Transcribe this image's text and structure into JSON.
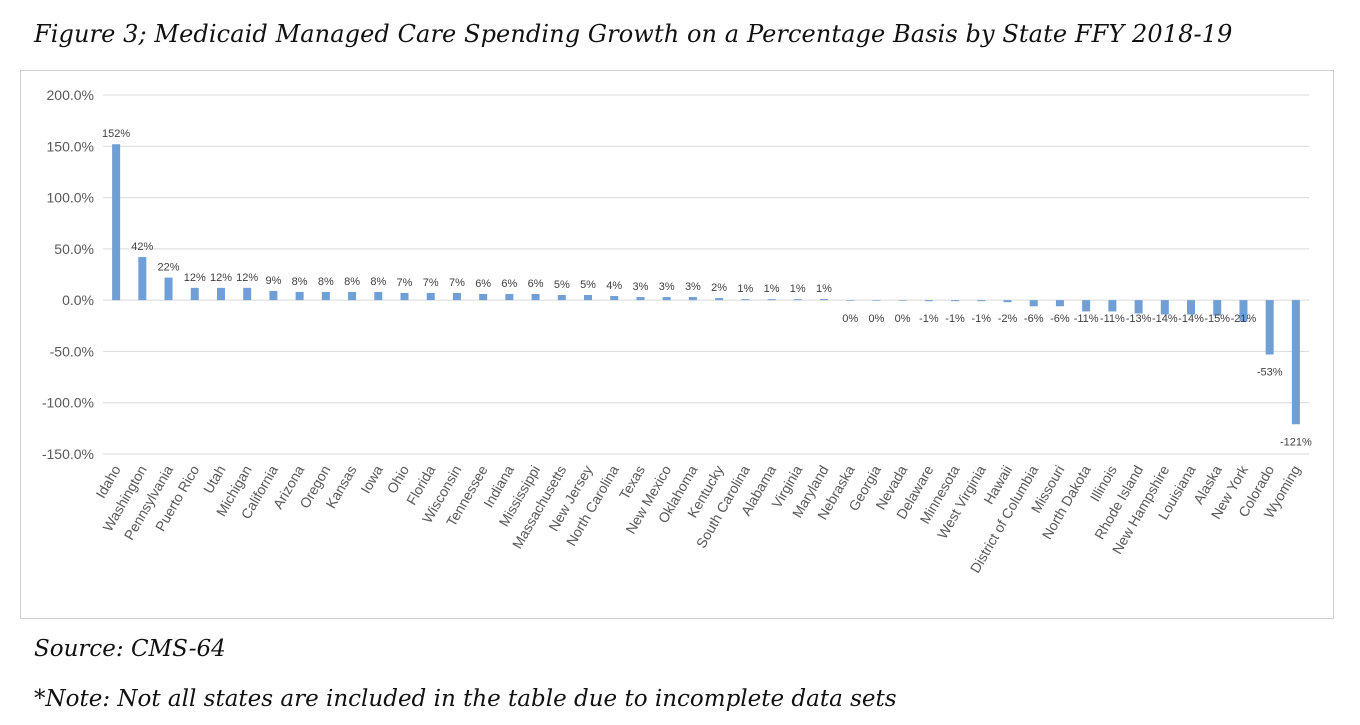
{
  "figure": {
    "title": "Figure 3; Medicaid Managed Care Spending Growth on a Percentage Basis by State FFY 2018-19",
    "source": "Source: CMS-64",
    "note": "*Note: Not all states are included in the table due to incomplete data sets"
  },
  "colors": {
    "bar": "#6f9fd5",
    "gridline": "#d9d9d9",
    "axis_text": "#595959"
  },
  "chart_data": {
    "type": "bar",
    "title": "",
    "xlabel": "",
    "ylabel": "",
    "ylim": [
      -150,
      200
    ],
    "yticks": [
      200,
      150,
      100,
      50,
      0,
      -50,
      -100,
      -150
    ],
    "ytick_labels": [
      "200.0%",
      "150.0%",
      "100.0%",
      "50.0%",
      "0.0%",
      "-50.0%",
      "-100.0%",
      "-150.0%"
    ],
    "grid": true,
    "legend": "none",
    "categories": [
      "Idaho",
      "Washington",
      "Pennsylvania",
      "Puerto Rico",
      "Utah",
      "Michigan",
      "California",
      "Arizona",
      "Oregon",
      "Kansas",
      "Iowa",
      "Ohio",
      "Florida",
      "Wisconsin",
      "Tennessee",
      "Indiana",
      "Mississippi",
      "Massachusetts",
      "New Jersey",
      "North Carolina",
      "Texas",
      "New Mexico",
      "Oklahoma",
      "Kentucky",
      "South Carolina",
      "Alabama",
      "Virginia",
      "Maryland",
      "Nebraska",
      "Georgia",
      "Nevada",
      "Delaware",
      "Minnesota",
      "West Virginia",
      "Hawaii",
      "District of Columbia",
      "Missouri",
      "North Dakota",
      "Illinois",
      "Rhode Island",
      "New Hampshire",
      "Louisiana",
      "Alaska",
      "New York",
      "Colorado",
      "Wyoming"
    ],
    "values": [
      152,
      42,
      22,
      12,
      12,
      12,
      9,
      8,
      8,
      8,
      8,
      7,
      7,
      7,
      6,
      6,
      6,
      5,
      5,
      4,
      3,
      3,
      3,
      2,
      1,
      1,
      1,
      1,
      0,
      0,
      0,
      -1,
      -1,
      -1,
      -2,
      -6,
      -6,
      -11,
      -11,
      -13,
      -14,
      -14,
      -15,
      -21,
      -53,
      -121
    ],
    "data_labels": [
      "152%",
      "42%",
      "22%",
      "12%",
      "12%",
      "12%",
      "9%",
      "8%",
      "8%",
      "8%",
      "8%",
      "7%",
      "7%",
      "7%",
      "6%",
      "6%",
      "6%",
      "5%",
      "5%",
      "4%",
      "3%",
      "3%",
      "3%",
      "2%",
      "1%",
      "1%",
      "1%",
      "1%",
      "0%",
      "0%",
      "0%",
      "-1%",
      "-1%",
      "-1%",
      "-2%",
      "-6%",
      "-6%",
      "-11%",
      "-11%",
      "-13%",
      "-14%",
      "-14%",
      "-15%",
      "-21%",
      "-53%",
      "-121%"
    ]
  }
}
